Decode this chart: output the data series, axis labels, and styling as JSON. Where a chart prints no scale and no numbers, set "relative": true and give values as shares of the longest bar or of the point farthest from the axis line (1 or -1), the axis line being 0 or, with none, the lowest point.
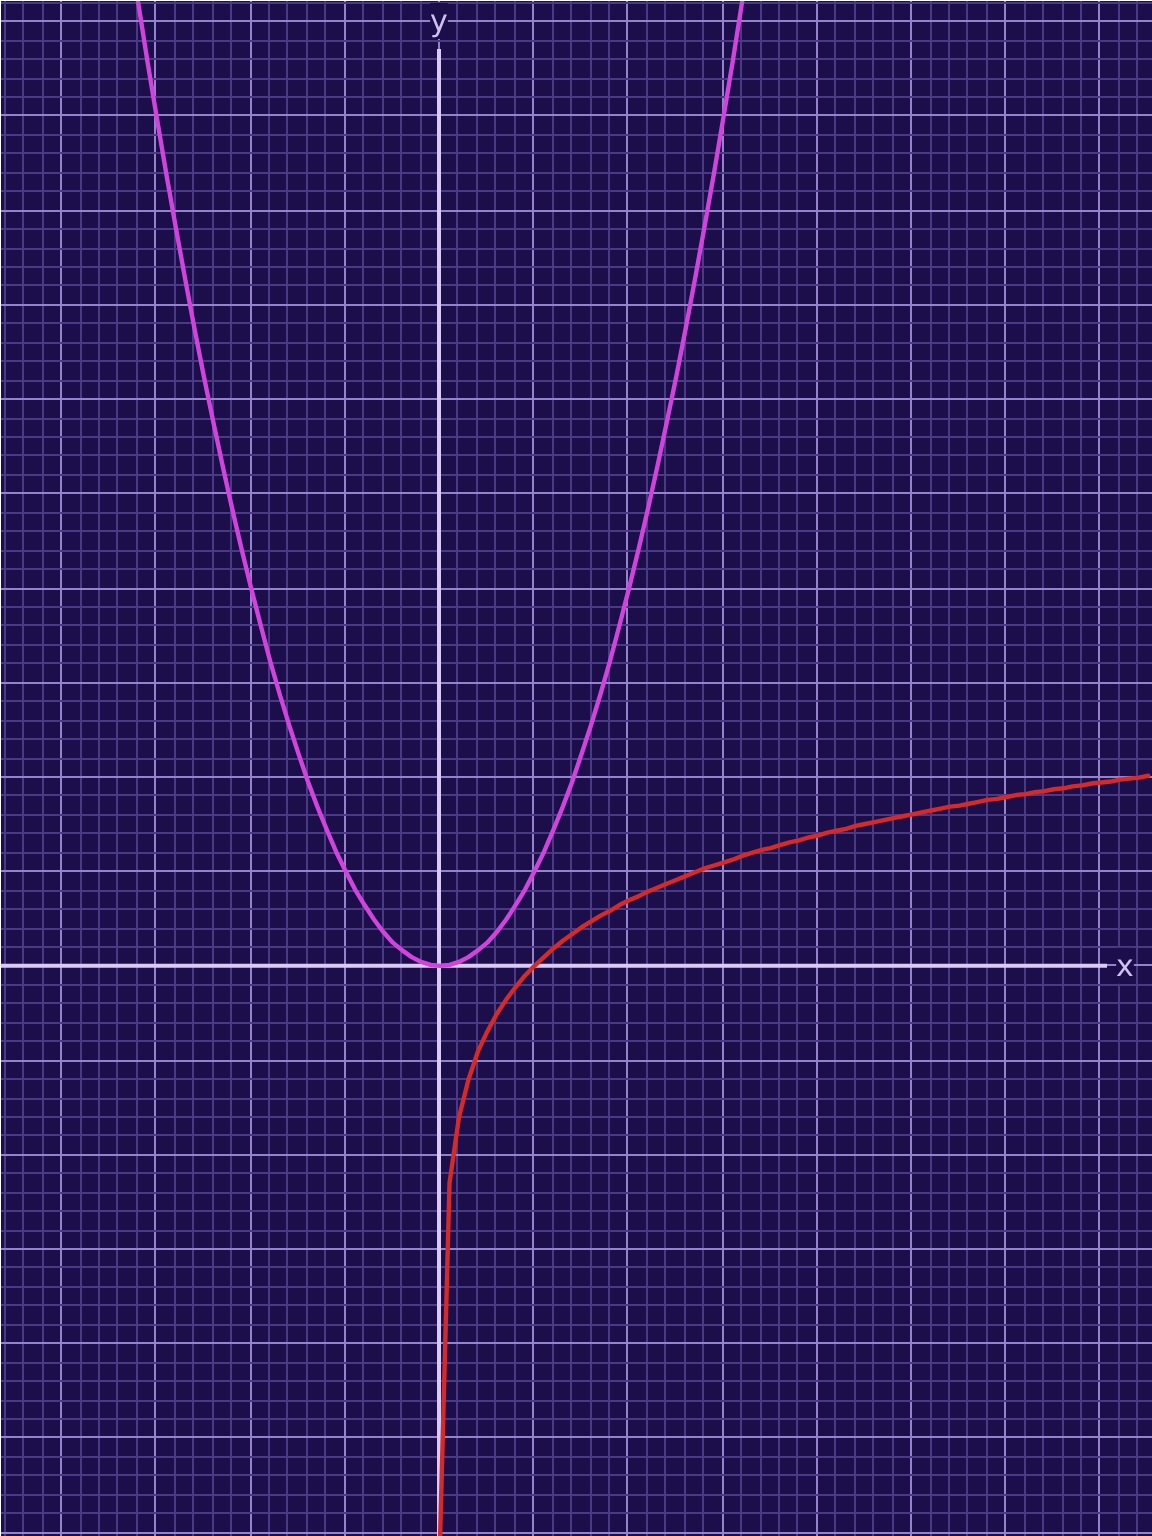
{
  "chart_data": {
    "type": "line",
    "relative": true,
    "xlabel": "x",
    "ylabel": "y",
    "grid": true,
    "categories": [
      null,
      null,
      null,
      null,
      null,
      null,
      null,
      null,
      null,
      null,
      null,
      null,
      null,
      null,
      null,
      null,
      null,
      null,
      null,
      null,
      null,
      null,
      null,
      null,
      null,
      null,
      null,
      null,
      null,
      null,
      null,
      null,
      null,
      null,
      null,
      null,
      null,
      null,
      null,
      null,
      null,
      null,
      null,
      null,
      null,
      null,
      null,
      null,
      null,
      null,
      null,
      null,
      null,
      null,
      null,
      null,
      null,
      null,
      null,
      null,
      null,
      null,
      null,
      null,
      null,
      null,
      null,
      null,
      null,
      null,
      null,
      null,
      null,
      null,
      null,
      null,
      null,
      null,
      null,
      null,
      null,
      null,
      null,
      null,
      null,
      null,
      null,
      null,
      null,
      null,
      null,
      null,
      null,
      null,
      null,
      null,
      null,
      null,
      null,
      null,
      null,
      null,
      null,
      null,
      null,
      null,
      null,
      null,
      null,
      null,
      null,
      null,
      null,
      null,
      null,
      null,
      null,
      null,
      null,
      null,
      null,
      null
    ],
    "ref_lines": [
      {
        "axis": "y",
        "value": 0,
        "color": "#d9cbf5"
      }
    ],
    "series": [
      {
        "color": "#cf45dc",
        "values": [
          null,
          null,
          null,
          null,
          null,
          null,
          null,
          null,
          null,
          null,
          null,
          null,
          null,
          null,
          1,
          0.938,
          0.879,
          0.821,
          0.766,
          0.712,
          0.66,
          0.61,
          0.563,
          0.517,
          0.473,
          0.431,
          0.391,
          0.353,
          0.316,
          0.282,
          0.25,
          0.22,
          0.191,
          0.165,
          0.141,
          0.118,
          0.098,
          0.079,
          0.063,
          0.048,
          0.035,
          0.024,
          0.016,
          0.009,
          0.004,
          0.001,
          0,
          0.001,
          0.004,
          0.009,
          0.016,
          0.024,
          0.035,
          0.048,
          0.063,
          0.079,
          0.098,
          0.118,
          0.141,
          0.165,
          0.191,
          0.22,
          0.25,
          0.282,
          0.316,
          0.353,
          0.391,
          0.431,
          0.473,
          0.517,
          0.563,
          0.61,
          0.66,
          0.712,
          0.766,
          0.821,
          0.879,
          0.938,
          1,
          null,
          null,
          null,
          null,
          null,
          null,
          null,
          null,
          null,
          null,
          null,
          null,
          null,
          null,
          null,
          null,
          null,
          null,
          null,
          null,
          null,
          null,
          null,
          null,
          null,
          null,
          null,
          null,
          null,
          null,
          null,
          null,
          null,
          null,
          null,
          null,
          null,
          null,
          null,
          null,
          null,
          null,
          null
        ]
      },
      {
        "color": "#d42a2a",
        "values": [
          null,
          null,
          null,
          null,
          null,
          null,
          null,
          null,
          null,
          null,
          null,
          null,
          null,
          null,
          null,
          null,
          null,
          null,
          null,
          null,
          null,
          null,
          null,
          null,
          null,
          null,
          null,
          null,
          null,
          null,
          null,
          null,
          null,
          null,
          null,
          null,
          null,
          null,
          null,
          null,
          null,
          null,
          null,
          null,
          null,
          null,
          -0.592,
          -0.225,
          -0.157,
          -0.118,
          -0.089,
          -0.068,
          -0.05,
          -0.035,
          -0.022,
          -0.01,
          0,
          0.009,
          0.018,
          0.026,
          0.033,
          0.04,
          0.046,
          0.052,
          0.057,
          0.063,
          0.068,
          0.072,
          0.077,
          0.081,
          0.085,
          0.089,
          0.093,
          0.097,
          0.101,
          0.104,
          0.107,
          0.11,
          0.114,
          0.117,
          0.12,
          0.122,
          0.125,
          0.128,
          0.13,
          0.133,
          0.135,
          0.138,
          0.14,
          0.142,
          0.145,
          0.147,
          0.149,
          0.151,
          0.153,
          0.155,
          0.157,
          0.159,
          0.161,
          0.163,
          0.165,
          0.166,
          0.168,
          0.17,
          0.172,
          0.173,
          0.175,
          0.177,
          0.178,
          0.18,
          0.181,
          0.183,
          0.184,
          0.186,
          0.187,
          0.189,
          0.19,
          0.191,
          0.193,
          0.194,
          0.195,
          0.197
        ]
      }
    ]
  }
}
